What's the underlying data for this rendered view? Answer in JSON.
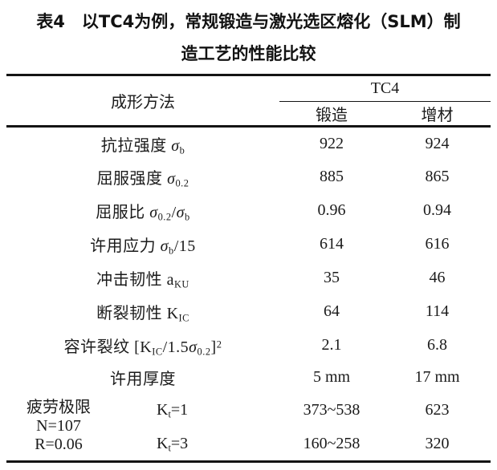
{
  "title": {
    "line1": "表4　以TC4为例，常规锻造与激光选区熔化（SLM）制",
    "line2": "造工艺的性能比较"
  },
  "table": {
    "header": {
      "method": "成形方法",
      "group": "TC4",
      "col_forged": "锻造",
      "col_additive": "增材"
    },
    "rows": [
      {
        "label": [
          {
            "t": "抗拉强度 "
          },
          {
            "t": "σ",
            "i": 1
          },
          {
            "t": "b",
            "sub": 1
          }
        ],
        "forged": "922",
        "additive": "924"
      },
      {
        "label": [
          {
            "t": "屈服强度 "
          },
          {
            "t": "σ",
            "i": 1
          },
          {
            "t": "0.2",
            "sub": 1
          }
        ],
        "forged": "885",
        "additive": "865"
      },
      {
        "label": [
          {
            "t": "屈服比 "
          },
          {
            "t": "σ",
            "i": 1
          },
          {
            "t": "0.2",
            "sub": 1
          },
          {
            "t": "/"
          },
          {
            "t": "σ",
            "i": 1
          },
          {
            "t": "b",
            "sub": 1
          }
        ],
        "forged": "0.96",
        "additive": "0.94"
      },
      {
        "label": [
          {
            "t": "许用应力 "
          },
          {
            "t": "σ",
            "i": 1
          },
          {
            "t": "b",
            "sub": 1
          },
          {
            "t": "/15"
          }
        ],
        "forged": "614",
        "additive": "616"
      },
      {
        "label": [
          {
            "t": "冲击韧性 a"
          },
          {
            "t": "KU",
            "sub": 1
          }
        ],
        "forged": "35",
        "additive": "46"
      },
      {
        "label": [
          {
            "t": "断裂韧性 K"
          },
          {
            "t": "IC",
            "sub": 1
          }
        ],
        "forged": "64",
        "additive": "114"
      },
      {
        "label": [
          {
            "t": "容许裂纹 [K"
          },
          {
            "t": "IC",
            "sub": 1
          },
          {
            "t": "/1.5"
          },
          {
            "t": "σ",
            "i": 1
          },
          {
            "t": "0.2",
            "sub": 1
          },
          {
            "t": "]"
          },
          {
            "t": "2",
            "sup": 1
          }
        ],
        "forged": "2.1",
        "additive": "6.8"
      },
      {
        "label": [
          {
            "t": "许用厚度"
          }
        ],
        "forged": "5 mm",
        "additive": "17 mm"
      }
    ],
    "fatigue": {
      "label_lines": [
        "疲劳极限",
        "N=107",
        "R=0.06"
      ],
      "rows": [
        {
          "kt": [
            {
              "t": "K"
            },
            {
              "t": "t",
              "sub": 1
            },
            {
              "t": "=1"
            }
          ],
          "forged": "373~538",
          "additive": "623"
        },
        {
          "kt": [
            {
              "t": "K"
            },
            {
              "t": "t",
              "sub": 1
            },
            {
              "t": "=3"
            }
          ],
          "forged": "160~258",
          "additive": "320"
        }
      ]
    }
  },
  "colors": {
    "text": "#161616",
    "background": "#ffffff",
    "rule": "#141414"
  }
}
